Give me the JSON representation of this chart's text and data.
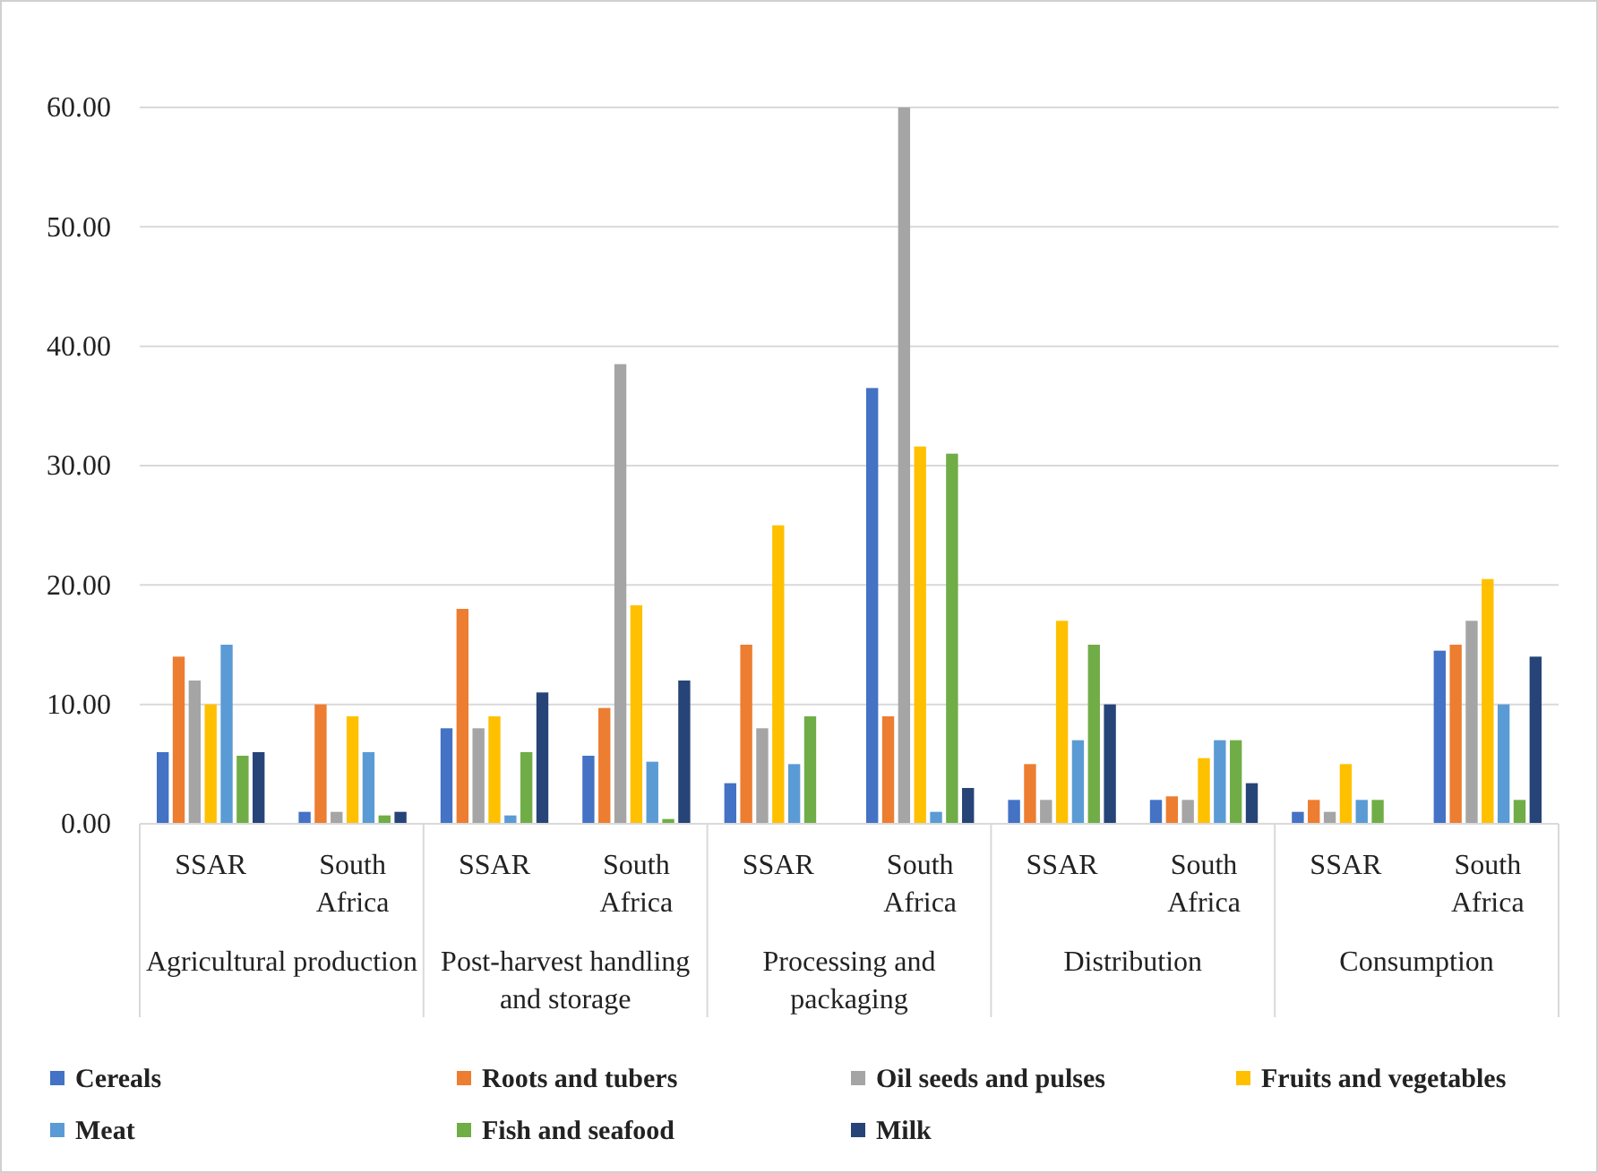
{
  "chart_data": {
    "type": "bar",
    "categories": [
      "SSAR",
      "South Africa",
      "SSAR",
      "South Africa",
      "SSAR",
      "South Africa",
      "SSAR",
      "South Africa",
      "SSAR",
      "South Africa"
    ],
    "annotations": [
      "Agricultural production",
      "Post-harvest handling and storage",
      "Processing and packaging",
      "Distribution",
      "Consumption"
    ],
    "series": [
      {
        "name": "Cereals",
        "color": "#4472c4",
        "values": [
          6,
          1,
          8,
          5.7,
          3.4,
          36.5,
          2,
          2,
          1,
          14.5
        ]
      },
      {
        "name": "Roots and tubers",
        "color": "#ed7d31",
        "values": [
          14,
          10,
          18,
          9.7,
          15,
          9,
          5,
          2.3,
          2,
          15
        ]
      },
      {
        "name": "Oil seeds and pulses",
        "color": "#a5a5a5",
        "values": [
          12,
          1,
          8,
          38.5,
          8,
          60,
          2,
          2,
          1,
          17
        ]
      },
      {
        "name": "Fruits and vegetables",
        "color": "#ffc000",
        "values": [
          10,
          9,
          9,
          18.3,
          25,
          31.6,
          17,
          5.5,
          5,
          20.5
        ]
      },
      {
        "name": "Meat",
        "color": "#5b9bd5",
        "values": [
          15,
          6,
          0.7,
          5.2,
          5,
          1,
          7,
          7,
          2,
          10
        ]
      },
      {
        "name": "Fish and seafood",
        "color": "#70ad47",
        "values": [
          5.7,
          0.7,
          6,
          0.4,
          9,
          31,
          15,
          7,
          2,
          2
        ]
      },
      {
        "name": "Milk",
        "color": "#264478",
        "values": [
          6,
          1,
          11,
          12,
          0,
          3,
          10,
          3.4,
          0,
          14
        ]
      }
    ],
    "ylim": [
      0,
      60
    ],
    "yticks": [
      {
        "value": 0,
        "label": "0.00"
      },
      {
        "value": 10,
        "label": "10.00"
      },
      {
        "value": 20,
        "label": "20.00"
      },
      {
        "value": 30,
        "label": "30.00"
      },
      {
        "value": 40,
        "label": "40.00"
      },
      {
        "value": 50,
        "label": "50.00"
      },
      {
        "value": 60,
        "label": "60.00"
      }
    ],
    "grid": "y",
    "legend": "bottom"
  }
}
